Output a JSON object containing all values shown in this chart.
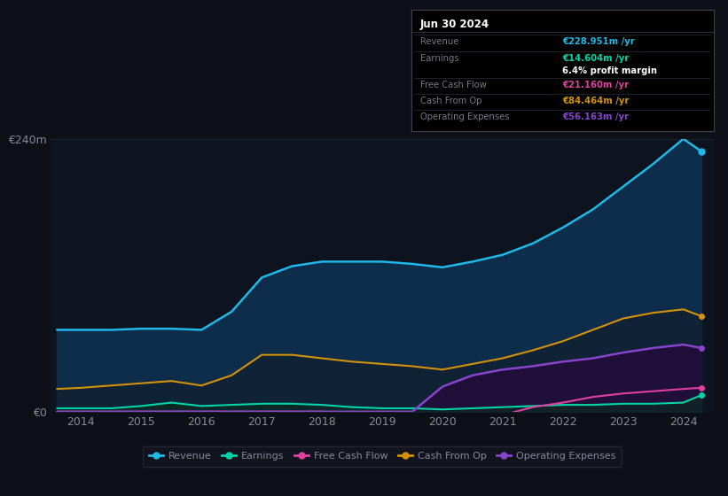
{
  "background_color": "#0d1117",
  "plot_bg_color": "#0d1420",
  "years": [
    2013.6,
    2014.0,
    2014.5,
    2015.0,
    2015.5,
    2016.0,
    2016.5,
    2017.0,
    2017.5,
    2018.0,
    2018.5,
    2019.0,
    2019.5,
    2020.0,
    2020.5,
    2021.0,
    2021.5,
    2022.0,
    2022.5,
    2023.0,
    2023.5,
    2024.0,
    2024.3
  ],
  "revenue": [
    72,
    72,
    72,
    73,
    73,
    72,
    88,
    118,
    128,
    132,
    132,
    132,
    130,
    127,
    132,
    138,
    148,
    162,
    178,
    198,
    218,
    240,
    229
  ],
  "earnings": [
    3,
    3,
    3,
    5,
    8,
    5,
    6,
    7,
    7,
    6,
    4,
    3,
    3,
    2,
    3,
    4,
    5,
    6,
    6,
    7,
    7,
    8,
    14.6
  ],
  "free_cash_flow": [
    0,
    0,
    0,
    0,
    0,
    0,
    0,
    0,
    0,
    0,
    -1,
    -2,
    -4,
    -5,
    -4,
    -3,
    4,
    8,
    13,
    16,
    18,
    20,
    21
  ],
  "cash_from_op": [
    20,
    21,
    23,
    25,
    27,
    23,
    32,
    50,
    50,
    47,
    44,
    42,
    40,
    37,
    42,
    47,
    54,
    62,
    72,
    82,
    87,
    90,
    84
  ],
  "operating_expenses": [
    0,
    0,
    0,
    0,
    0,
    0,
    0,
    0,
    0,
    0,
    0,
    0,
    0,
    22,
    32,
    37,
    40,
    44,
    47,
    52,
    56,
    59,
    56
  ],
  "ylim": [
    0,
    240
  ],
  "xlim": [
    2013.5,
    2024.5
  ],
  "yticks": [
    0,
    240
  ],
  "ytick_labels": [
    "€0",
    "€240m"
  ],
  "xlabel_years": [
    2014,
    2015,
    2016,
    2017,
    2018,
    2019,
    2020,
    2021,
    2022,
    2023,
    2024
  ],
  "revenue_color": "#1fb8e8",
  "revenue_fill": "#0d2d4a",
  "earnings_color": "#00d4a8",
  "earnings_fill": "#0d2a20",
  "free_cash_flow_color": "#e040a0",
  "cash_from_op_color": "#d4920a",
  "cash_from_op_fill": "#1e1a06",
  "operating_expenses_color": "#8844cc",
  "operating_expenses_fill": "#220d3a",
  "grid_color": "#1e2a38",
  "text_color": "#888899",
  "info_box": {
    "date": "Jun 30 2024",
    "revenue_label": "Revenue",
    "revenue_val": "€228.951m /yr",
    "revenue_color": "#1fb8e8",
    "earnings_label": "Earnings",
    "earnings_val": "€14.604m /yr",
    "earnings_color": "#00d4a8",
    "profit_margin": "6.4% profit margin",
    "fcf_label": "Free Cash Flow",
    "fcf_val": "€21.160m /yr",
    "fcf_color": "#e040a0",
    "cashop_label": "Cash From Op",
    "cashop_val": "€84.464m /yr",
    "cashop_color": "#d4920a",
    "opex_label": "Operating Expenses",
    "opex_val": "€56.163m /yr",
    "opex_color": "#8844cc"
  },
  "legend_labels": [
    "Revenue",
    "Earnings",
    "Free Cash Flow",
    "Cash From Op",
    "Operating Expenses"
  ]
}
